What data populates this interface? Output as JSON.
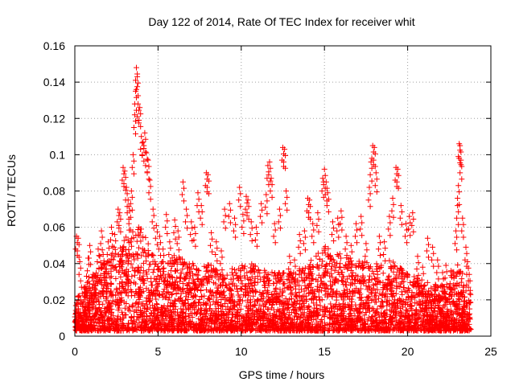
{
  "chart_data": {
    "type": "scatter",
    "title": "Day 122 of 2014, Rate Of TEC Index for receiver whit",
    "xlabel": "GPS time / hours",
    "ylabel": "ROTI / TECUs",
    "xlim": [
      0,
      25
    ],
    "ylim": [
      0,
      0.16
    ],
    "xticks": [
      0,
      5,
      10,
      15,
      20,
      25
    ],
    "yticks": [
      0,
      0.02,
      0.04,
      0.06,
      0.08,
      0.1,
      0.12,
      0.14,
      0.16
    ],
    "xtick_labels": [
      "0",
      "5",
      "10",
      "15",
      "20",
      "25"
    ],
    "ytick_labels": [
      "0",
      "0.02",
      "0.04",
      "0.06",
      "0.08",
      "0.1",
      "0.12",
      "0.14",
      "0.16"
    ],
    "grid": true,
    "marker": "+",
    "color": "#ff0000",
    "series": [
      {
        "points": [
          [
            0.1,
            0.055
          ],
          [
            0.2,
            0.054
          ],
          [
            0.3,
            0.041
          ],
          [
            0.4,
            0.027
          ],
          [
            0.6,
            0.02
          ],
          [
            0.7,
            0.033
          ],
          [
            0.8,
            0.043
          ],
          [
            0.9,
            0.05
          ],
          [
            1.1,
            0.034
          ],
          [
            1.2,
            0.026
          ],
          [
            1.4,
            0.048
          ],
          [
            1.5,
            0.044
          ],
          [
            1.6,
            0.058
          ],
          [
            1.7,
            0.045
          ],
          [
            1.8,
            0.039
          ],
          [
            2.0,
            0.052
          ],
          [
            2.2,
            0.06
          ],
          [
            2.4,
            0.056
          ],
          [
            2.6,
            0.07
          ],
          [
            2.7,
            0.068
          ],
          [
            2.9,
            0.093
          ],
          [
            3.0,
            0.091
          ],
          [
            3.1,
            0.082
          ],
          [
            3.2,
            0.075
          ],
          [
            3.3,
            0.069
          ],
          [
            3.4,
            0.08
          ],
          [
            3.5,
            0.1
          ],
          [
            3.6,
            0.122
          ],
          [
            3.65,
            0.135
          ],
          [
            3.7,
            0.148
          ],
          [
            3.75,
            0.143
          ],
          [
            3.8,
            0.128
          ],
          [
            3.9,
            0.126
          ],
          [
            4.0,
            0.11
          ],
          [
            4.1,
            0.107
          ],
          [
            4.2,
            0.112
          ],
          [
            4.3,
            0.101
          ],
          [
            4.4,
            0.097
          ],
          [
            4.5,
            0.086
          ],
          [
            4.7,
            0.07
          ],
          [
            4.9,
            0.061
          ],
          [
            5.1,
            0.055
          ],
          [
            5.3,
            0.048
          ],
          [
            5.5,
            0.067
          ],
          [
            5.7,
            0.052
          ],
          [
            6.0,
            0.064
          ],
          [
            6.2,
            0.058
          ],
          [
            6.5,
            0.085
          ],
          [
            6.7,
            0.07
          ],
          [
            7.0,
            0.063
          ],
          [
            7.2,
            0.06
          ],
          [
            7.4,
            0.079
          ],
          [
            7.6,
            0.072
          ],
          [
            7.9,
            0.09
          ],
          [
            8.0,
            0.089
          ],
          [
            8.2,
            0.057
          ],
          [
            8.5,
            0.052
          ],
          [
            8.8,
            0.047
          ],
          [
            9.0,
            0.07
          ],
          [
            9.3,
            0.073
          ],
          [
            9.6,
            0.065
          ],
          [
            9.9,
            0.082
          ],
          [
            10.1,
            0.067
          ],
          [
            10.3,
            0.077
          ],
          [
            10.4,
            0.075
          ],
          [
            10.6,
            0.063
          ],
          [
            10.9,
            0.06
          ],
          [
            11.2,
            0.073
          ],
          [
            11.5,
            0.078
          ],
          [
            11.6,
            0.094
          ],
          [
            11.7,
            0.096
          ],
          [
            11.8,
            0.087
          ],
          [
            12.0,
            0.062
          ],
          [
            12.3,
            0.07
          ],
          [
            12.5,
            0.104
          ],
          [
            12.6,
            0.103
          ],
          [
            12.7,
            0.08
          ],
          [
            12.9,
            0.044
          ],
          [
            13.2,
            0.042
          ],
          [
            13.5,
            0.056
          ],
          [
            13.8,
            0.058
          ],
          [
            14.0,
            0.076
          ],
          [
            14.1,
            0.075
          ],
          [
            14.3,
            0.062
          ],
          [
            14.6,
            0.068
          ],
          [
            14.9,
            0.087
          ],
          [
            15.0,
            0.092
          ],
          [
            15.1,
            0.085
          ],
          [
            15.2,
            0.079
          ],
          [
            15.5,
            0.063
          ],
          [
            15.8,
            0.065
          ],
          [
            16.0,
            0.069
          ],
          [
            16.3,
            0.055
          ],
          [
            16.6,
            0.05
          ],
          [
            16.9,
            0.062
          ],
          [
            17.2,
            0.066
          ],
          [
            17.5,
            0.051
          ],
          [
            17.7,
            0.082
          ],
          [
            17.8,
            0.096
          ],
          [
            17.9,
            0.105
          ],
          [
            18.0,
            0.104
          ],
          [
            18.1,
            0.09
          ],
          [
            18.3,
            0.055
          ],
          [
            18.6,
            0.052
          ],
          [
            18.9,
            0.066
          ],
          [
            19.1,
            0.076
          ],
          [
            19.3,
            0.093
          ],
          [
            19.4,
            0.092
          ],
          [
            19.6,
            0.072
          ],
          [
            19.9,
            0.062
          ],
          [
            20.1,
            0.066
          ],
          [
            20.3,
            0.068
          ],
          [
            20.6,
            0.044
          ],
          [
            20.9,
            0.038
          ],
          [
            21.2,
            0.054
          ],
          [
            21.5,
            0.049
          ],
          [
            21.8,
            0.042
          ],
          [
            22.1,
            0.035
          ],
          [
            22.3,
            0.039
          ],
          [
            22.6,
            0.036
          ],
          [
            22.9,
            0.058
          ],
          [
            23.0,
            0.072
          ],
          [
            23.05,
            0.083
          ],
          [
            23.1,
            0.106
          ],
          [
            23.15,
            0.105
          ],
          [
            23.2,
            0.097
          ],
          [
            23.3,
            0.065
          ],
          [
            23.5,
            0.049
          ],
          [
            23.6,
            0.041
          ],
          [
            23.7,
            0.034
          ]
        ]
      }
    ],
    "dense_floor": {
      "x_range": [
        0,
        23.8
      ],
      "y_min": 0.003,
      "band": [
        [
          0,
          0.022
        ],
        [
          1,
          0.032
        ],
        [
          2,
          0.045
        ],
        [
          3,
          0.055
        ],
        [
          3.7,
          0.065
        ],
        [
          5,
          0.04
        ],
        [
          6,
          0.045
        ],
        [
          7,
          0.04
        ],
        [
          8,
          0.04
        ],
        [
          9,
          0.035
        ],
        [
          10,
          0.04
        ],
        [
          11,
          0.04
        ],
        [
          12,
          0.035
        ],
        [
          13,
          0.035
        ],
        [
          14,
          0.04
        ],
        [
          15,
          0.05
        ],
        [
          16,
          0.045
        ],
        [
          17,
          0.042
        ],
        [
          18,
          0.04
        ],
        [
          19,
          0.042
        ],
        [
          20,
          0.035
        ],
        [
          21,
          0.03
        ],
        [
          22,
          0.028
        ],
        [
          23,
          0.04
        ],
        [
          23.8,
          0.025
        ]
      ]
    }
  }
}
